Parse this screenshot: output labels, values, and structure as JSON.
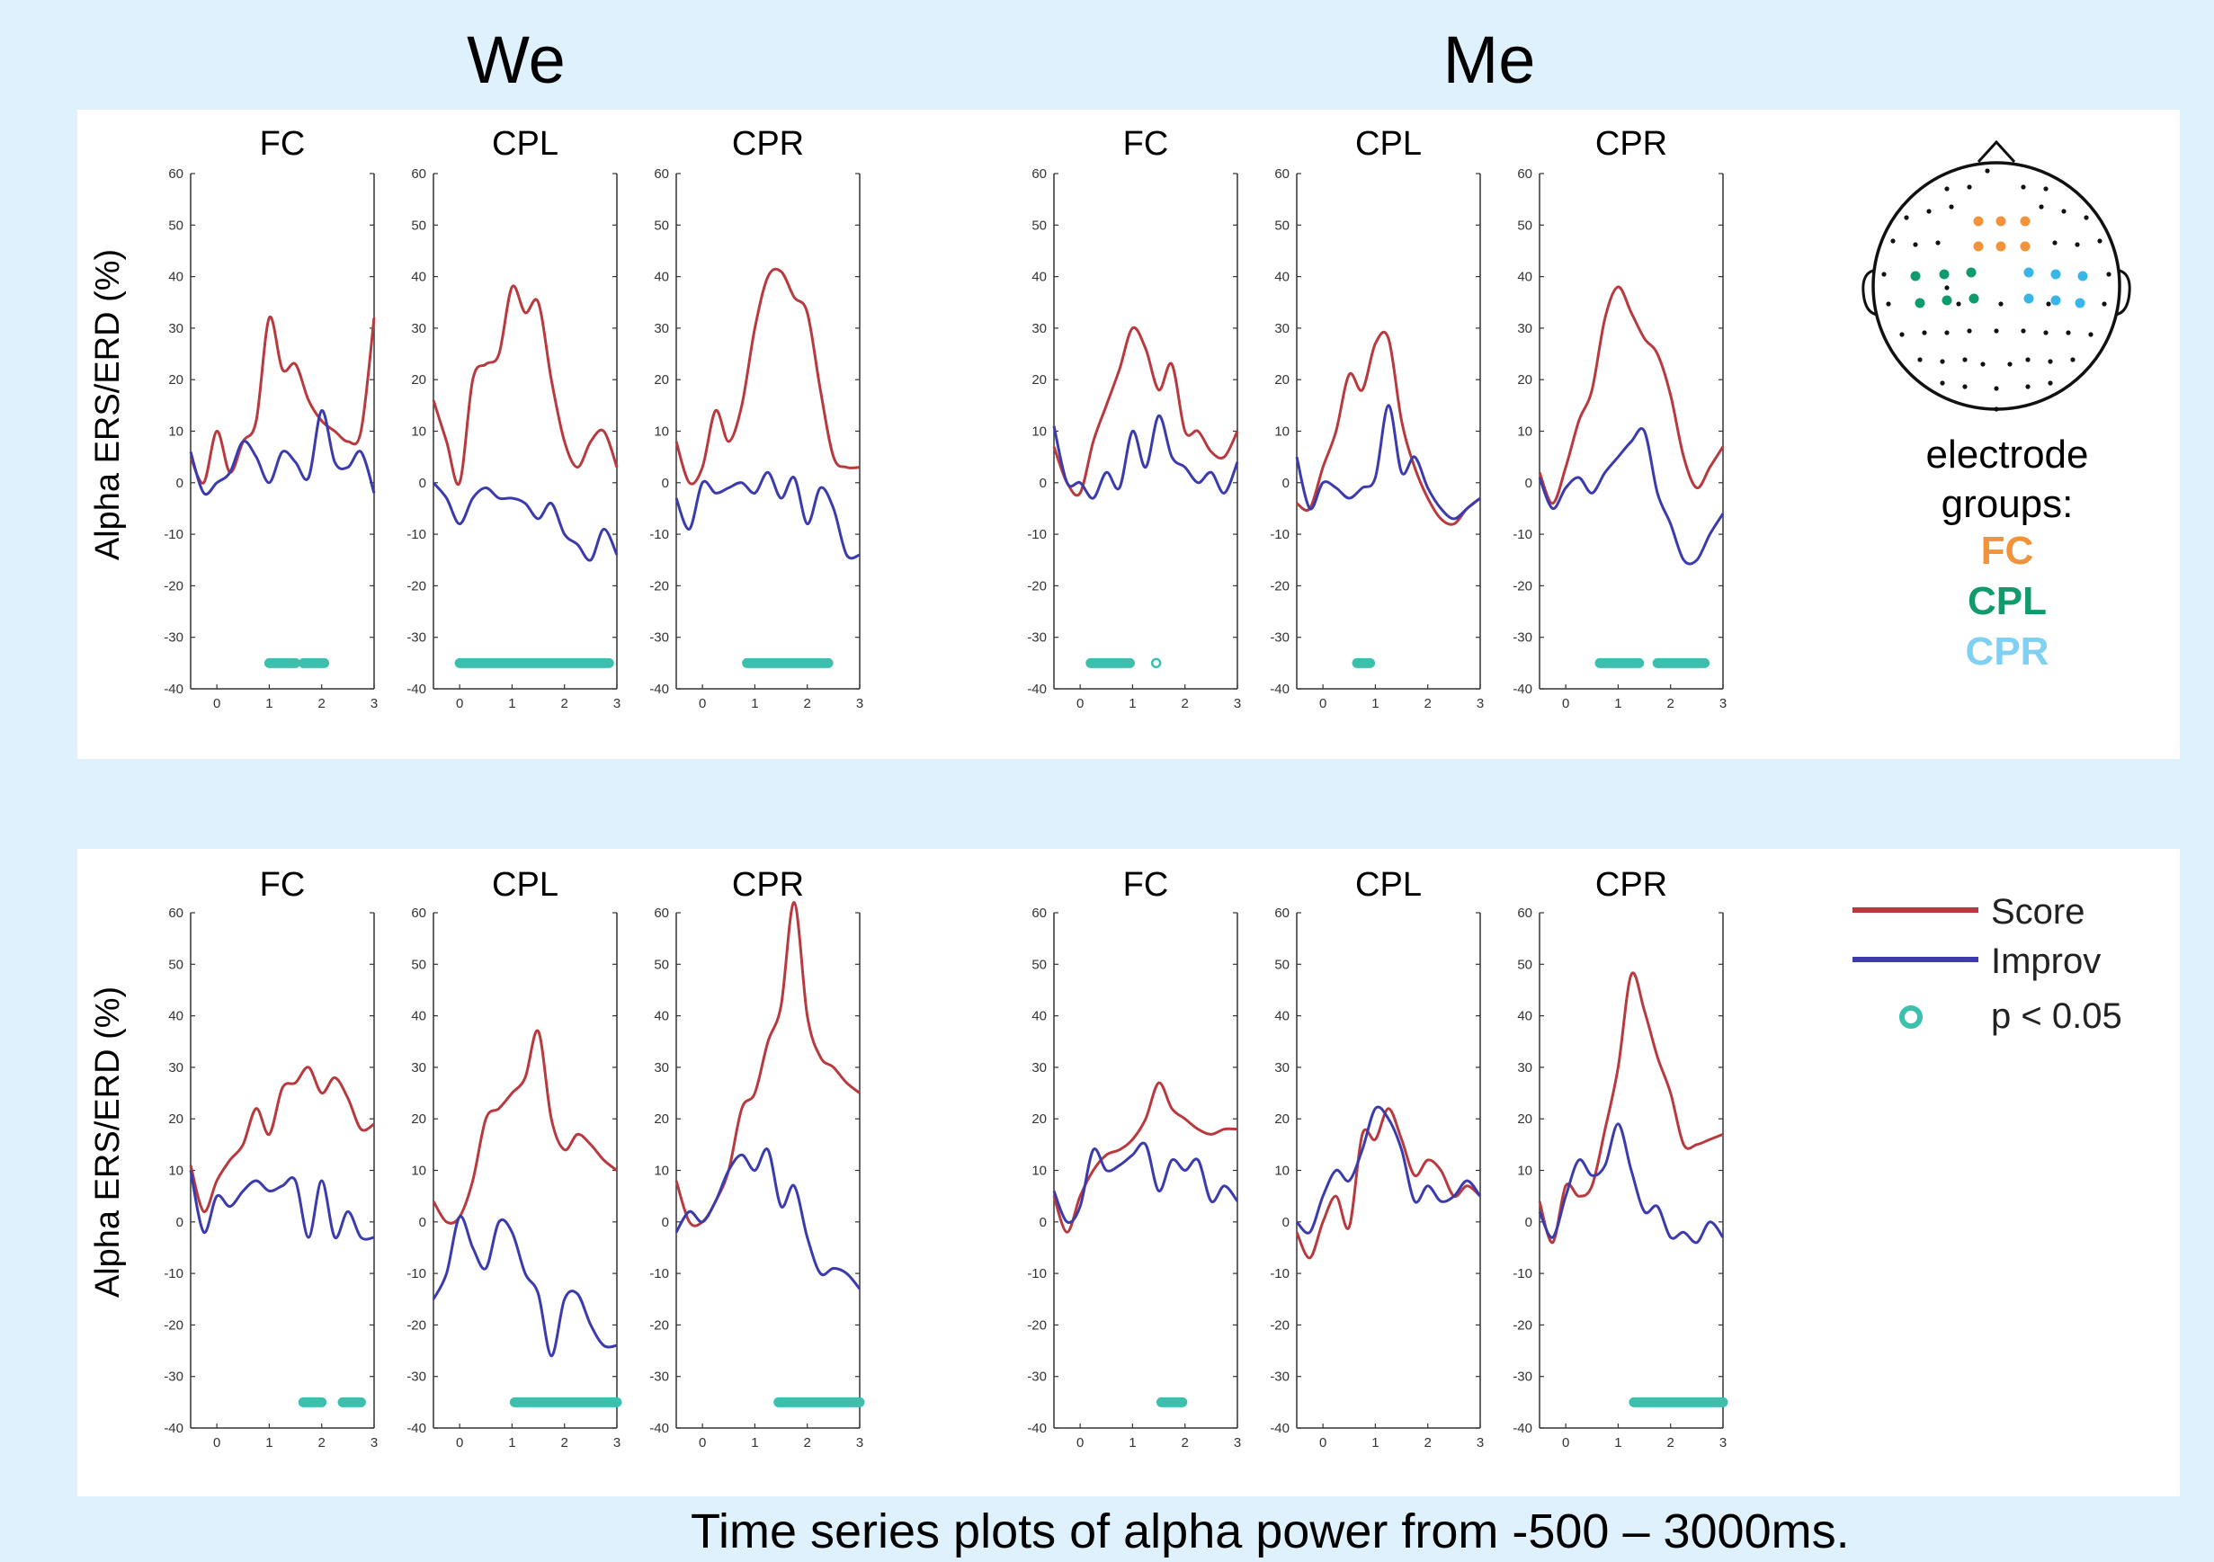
{
  "headers": {
    "we": "We",
    "me": "Me"
  },
  "caption": "Time series plots of alpha power from -500 – 3000ms.",
  "colors": {
    "background": "#dff1fc",
    "score": "#b83a3f",
    "improv": "#3b3bae",
    "significance": "#3dbfad",
    "fc": "#f2923a",
    "cpl": "#109b6c",
    "cpr": "#38b6e8"
  },
  "electrode_groups": {
    "title_line1": "electrode",
    "title_line2": "groups:",
    "items": [
      {
        "label": "FC",
        "color": "#f2923a"
      },
      {
        "label": "CPL",
        "color": "#109b6c"
      },
      {
        "label": "CPR",
        "color": "#7fd0f2"
      }
    ]
  },
  "legend": {
    "score": "Score",
    "improv": "Improv",
    "sig": "p < 0.05"
  },
  "chart_data": [
    {
      "type": "line",
      "row": 1,
      "group": "We",
      "title": "FC",
      "ylabel": "Alpha ERS/ERD (%)",
      "xlim": [
        -0.5,
        3
      ],
      "ylim": [
        -40,
        60
      ],
      "xticks": [
        0,
        1,
        2,
        3
      ],
      "yticks": [
        -40,
        -30,
        -20,
        -10,
        0,
        10,
        20,
        30,
        40,
        50,
        60
      ],
      "x": [
        -0.5,
        -0.25,
        0,
        0.25,
        0.5,
        0.75,
        1,
        1.25,
        1.5,
        1.75,
        2,
        2.25,
        2.5,
        2.75,
        3
      ],
      "series": [
        {
          "name": "Score",
          "values": [
            5,
            0,
            10,
            2,
            8,
            12,
            32,
            22,
            23,
            16,
            12,
            10,
            8,
            10,
            32
          ]
        },
        {
          "name": "Improv",
          "values": [
            6,
            -2,
            0,
            2,
            8,
            5,
            0,
            6,
            4,
            1,
            14,
            4,
            3,
            6,
            -2
          ]
        }
      ],
      "significance": [
        [
          1.0,
          1.5
        ],
        [
          1.65,
          2.05
        ]
      ]
    },
    {
      "type": "line",
      "row": 1,
      "group": "We",
      "title": "CPL",
      "xlim": [
        -0.5,
        3
      ],
      "ylim": [
        -40,
        60
      ],
      "xticks": [
        0,
        1,
        2,
        3
      ],
      "yticks": [
        -40,
        -30,
        -20,
        -10,
        0,
        10,
        20,
        30,
        40,
        50,
        60
      ],
      "x": [
        -0.5,
        -0.25,
        0,
        0.25,
        0.5,
        0.75,
        1,
        1.25,
        1.5,
        1.75,
        2,
        2.25,
        2.5,
        2.75,
        3
      ],
      "series": [
        {
          "name": "Score",
          "values": [
            16,
            8,
            0,
            20,
            23,
            25,
            38,
            33,
            35,
            20,
            8,
            3,
            8,
            10,
            3
          ]
        },
        {
          "name": "Improv",
          "values": [
            0,
            -3,
            -8,
            -3,
            -1,
            -3,
            -3,
            -4,
            -7,
            -4,
            -10,
            -12,
            -15,
            -9,
            -14
          ]
        }
      ],
      "significance": [
        [
          0.0,
          2.85
        ]
      ]
    },
    {
      "type": "line",
      "row": 1,
      "group": "We",
      "title": "CPR",
      "xlim": [
        -0.5,
        3
      ],
      "ylim": [
        -40,
        60
      ],
      "xticks": [
        0,
        1,
        2,
        3
      ],
      "yticks": [
        -40,
        -30,
        -20,
        -10,
        0,
        10,
        20,
        30,
        40,
        50,
        60
      ],
      "x": [
        -0.5,
        -0.25,
        0,
        0.25,
        0.5,
        0.75,
        1,
        1.25,
        1.5,
        1.75,
        2,
        2.25,
        2.5,
        2.75,
        3
      ],
      "series": [
        {
          "name": "Score",
          "values": [
            8,
            0,
            3,
            14,
            8,
            15,
            30,
            40,
            41,
            36,
            33,
            18,
            5,
            3,
            3
          ]
        },
        {
          "name": "Improv",
          "values": [
            -3,
            -9,
            0,
            -2,
            -1,
            0,
            -2,
            2,
            -3,
            1,
            -8,
            -1,
            -5,
            -14,
            -14
          ]
        }
      ],
      "significance": [
        [
          0.85,
          2.4
        ]
      ]
    },
    {
      "type": "line",
      "row": 1,
      "group": "Me",
      "title": "FC",
      "xlim": [
        -0.5,
        3
      ],
      "ylim": [
        -40,
        60
      ],
      "xticks": [
        0,
        1,
        2,
        3
      ],
      "yticks": [
        -40,
        -30,
        -20,
        -10,
        0,
        10,
        20,
        30,
        40,
        50,
        60
      ],
      "x": [
        -0.5,
        -0.25,
        0,
        0.25,
        0.5,
        0.75,
        1,
        1.25,
        1.5,
        1.75,
        2,
        2.25,
        2.5,
        2.75,
        3
      ],
      "series": [
        {
          "name": "Score",
          "values": [
            7,
            0,
            -2,
            8,
            15,
            22,
            30,
            26,
            18,
            23,
            10,
            10,
            6,
            5,
            10
          ]
        },
        {
          "name": "Improv",
          "values": [
            11,
            0,
            0,
            -3,
            2,
            -1,
            10,
            3,
            13,
            5,
            3,
            0,
            2,
            -2,
            4
          ]
        }
      ],
      "significance": [
        [
          0.2,
          0.95
        ]
      ],
      "significance_points": [
        1.45
      ]
    },
    {
      "type": "line",
      "row": 1,
      "group": "Me",
      "title": "CPL",
      "xlim": [
        -0.5,
        3
      ],
      "ylim": [
        -40,
        60
      ],
      "xticks": [
        0,
        1,
        2,
        3
      ],
      "yticks": [
        -40,
        -30,
        -20,
        -10,
        0,
        10,
        20,
        30,
        40,
        50,
        60
      ],
      "x": [
        -0.5,
        -0.25,
        0,
        0.25,
        0.5,
        0.75,
        1,
        1.25,
        1.5,
        1.75,
        2,
        2.25,
        2.5,
        2.75,
        3
      ],
      "series": [
        {
          "name": "Score",
          "values": [
            -4,
            -5,
            3,
            10,
            21,
            18,
            27,
            28,
            12,
            3,
            -3,
            -7,
            -8,
            -5,
            -3
          ]
        },
        {
          "name": "Improv",
          "values": [
            5,
            -5,
            0,
            -1,
            -3,
            -1,
            1,
            15,
            2,
            5,
            -1,
            -5,
            -7,
            -5,
            -3
          ]
        }
      ],
      "significance": [
        [
          0.65,
          0.9
        ]
      ]
    },
    {
      "type": "line",
      "row": 1,
      "group": "Me",
      "title": "CPR",
      "xlim": [
        -0.5,
        3
      ],
      "ylim": [
        -40,
        60
      ],
      "xticks": [
        0,
        1,
        2,
        3
      ],
      "yticks": [
        -40,
        -30,
        -20,
        -10,
        0,
        10,
        20,
        30,
        40,
        50,
        60
      ],
      "x": [
        -0.5,
        -0.25,
        0,
        0.25,
        0.5,
        0.75,
        1,
        1.25,
        1.5,
        1.75,
        2,
        2.25,
        2.5,
        2.75,
        3
      ],
      "series": [
        {
          "name": "Score",
          "values": [
            2,
            -4,
            3,
            12,
            18,
            32,
            38,
            33,
            28,
            25,
            17,
            5,
            -1,
            3,
            7
          ]
        },
        {
          "name": "Improv",
          "values": [
            1,
            -5,
            -1,
            1,
            -2,
            2,
            5,
            8,
            10,
            -2,
            -8,
            -15,
            -15,
            -10,
            -6
          ]
        }
      ],
      "significance": [
        [
          0.65,
          1.4
        ],
        [
          1.75,
          2.65
        ]
      ]
    },
    {
      "type": "line",
      "row": 2,
      "group": "We",
      "title": "FC",
      "ylabel": "Alpha ERS/ERD (%)",
      "xlim": [
        -0.5,
        3
      ],
      "ylim": [
        -40,
        60
      ],
      "xticks": [
        0,
        1,
        2,
        3
      ],
      "yticks": [
        -40,
        -30,
        -20,
        -10,
        0,
        10,
        20,
        30,
        40,
        50,
        60
      ],
      "x": [
        -0.5,
        -0.25,
        0,
        0.25,
        0.5,
        0.75,
        1,
        1.25,
        1.5,
        1.75,
        2,
        2.25,
        2.5,
        2.75,
        3
      ],
      "series": [
        {
          "name": "Score",
          "values": [
            11,
            2,
            8,
            12,
            15,
            22,
            17,
            26,
            27,
            30,
            25,
            28,
            24,
            18,
            19
          ]
        },
        {
          "name": "Improv",
          "values": [
            10,
            -2,
            5,
            3,
            6,
            8,
            6,
            7,
            8,
            -3,
            8,
            -3,
            2,
            -3,
            -3
          ]
        }
      ],
      "significance": [
        [
          1.65,
          2.0
        ],
        [
          2.4,
          2.75
        ]
      ]
    },
    {
      "type": "line",
      "row": 2,
      "group": "We",
      "title": "CPL",
      "xlim": [
        -0.5,
        3
      ],
      "ylim": [
        -40,
        60
      ],
      "xticks": [
        0,
        1,
        2,
        3
      ],
      "yticks": [
        -40,
        -30,
        -20,
        -10,
        0,
        10,
        20,
        30,
        40,
        50,
        60
      ],
      "x": [
        -0.5,
        -0.25,
        0,
        0.25,
        0.5,
        0.75,
        1,
        1.25,
        1.5,
        1.75,
        2,
        2.25,
        2.5,
        2.75,
        3
      ],
      "series": [
        {
          "name": "Score",
          "values": [
            4,
            0,
            1,
            8,
            20,
            22,
            25,
            28,
            37,
            20,
            14,
            17,
            15,
            12,
            10
          ]
        },
        {
          "name": "Improv",
          "values": [
            -15,
            -10,
            1,
            -5,
            -9,
            0,
            -2,
            -10,
            -14,
            -26,
            -15,
            -14,
            -20,
            -24,
            -24
          ]
        }
      ],
      "significance": [
        [
          1.05,
          3.0
        ]
      ]
    },
    {
      "type": "line",
      "row": 2,
      "group": "We",
      "title": "CPR",
      "xlim": [
        -0.5,
        3
      ],
      "ylim": [
        -40,
        60
      ],
      "xticks": [
        0,
        1,
        2,
        3
      ],
      "yticks": [
        -40,
        -30,
        -20,
        -10,
        0,
        10,
        20,
        30,
        40,
        50,
        60
      ],
      "x": [
        -0.5,
        -0.25,
        0,
        0.25,
        0.5,
        0.75,
        1,
        1.25,
        1.5,
        1.75,
        2,
        2.25,
        2.5,
        2.75,
        3
      ],
      "series": [
        {
          "name": "Score",
          "values": [
            8,
            0,
            0,
            4,
            10,
            22,
            25,
            35,
            42,
            62,
            40,
            32,
            30,
            27,
            25
          ]
        },
        {
          "name": "Improv",
          "values": [
            -2,
            2,
            0,
            4,
            10,
            13,
            10,
            14,
            3,
            7,
            -3,
            -10,
            -9,
            -10,
            -13
          ]
        }
      ],
      "significance": [
        [
          1.45,
          3.0
        ]
      ]
    },
    {
      "type": "line",
      "row": 2,
      "group": "Me",
      "title": "FC",
      "xlim": [
        -0.5,
        3
      ],
      "ylim": [
        -40,
        60
      ],
      "xticks": [
        0,
        1,
        2,
        3
      ],
      "yticks": [
        -40,
        -30,
        -20,
        -10,
        0,
        10,
        20,
        30,
        40,
        50,
        60
      ],
      "x": [
        -0.5,
        -0.25,
        0,
        0.25,
        0.5,
        0.75,
        1,
        1.25,
        1.5,
        1.75,
        2,
        2.25,
        2.5,
        2.75,
        3
      ],
      "series": [
        {
          "name": "Score",
          "values": [
            5,
            -2,
            5,
            10,
            13,
            14,
            16,
            20,
            27,
            22,
            20,
            18,
            17,
            18,
            18
          ]
        },
        {
          "name": "Improv",
          "values": [
            6,
            0,
            3,
            14,
            10,
            11,
            13,
            15,
            6,
            12,
            10,
            12,
            4,
            7,
            4
          ]
        }
      ],
      "significance": [
        [
          1.55,
          1.95
        ]
      ]
    },
    {
      "type": "line",
      "row": 2,
      "group": "Me",
      "title": "CPL",
      "xlim": [
        -0.5,
        3
      ],
      "ylim": [
        -40,
        60
      ],
      "xticks": [
        0,
        1,
        2,
        3
      ],
      "yticks": [
        -40,
        -30,
        -20,
        -10,
        0,
        10,
        20,
        30,
        40,
        50,
        60
      ],
      "x": [
        -0.5,
        -0.25,
        0,
        0.25,
        0.5,
        0.75,
        1,
        1.25,
        1.5,
        1.75,
        2,
        2.25,
        2.5,
        2.75,
        3
      ],
      "series": [
        {
          "name": "Score",
          "values": [
            -2,
            -7,
            0,
            5,
            -1,
            17,
            16,
            22,
            16,
            9,
            12,
            10,
            5,
            7,
            5
          ]
        },
        {
          "name": "Improv",
          "values": [
            0,
            -2,
            5,
            10,
            8,
            14,
            22,
            20,
            14,
            4,
            7,
            4,
            5,
            8,
            5
          ]
        }
      ],
      "significance": []
    },
    {
      "type": "line",
      "row": 2,
      "group": "Me",
      "title": "CPR",
      "xlim": [
        -0.5,
        3
      ],
      "ylim": [
        -40,
        60
      ],
      "xticks": [
        0,
        1,
        2,
        3
      ],
      "yticks": [
        -40,
        -30,
        -20,
        -10,
        0,
        10,
        20,
        30,
        40,
        50,
        60
      ],
      "x": [
        -0.5,
        -0.25,
        0,
        0.25,
        0.5,
        0.75,
        1,
        1.25,
        1.5,
        1.75,
        2,
        2.25,
        2.5,
        2.75,
        3
      ],
      "series": [
        {
          "name": "Score",
          "values": [
            4,
            -4,
            7,
            5,
            7,
            18,
            30,
            48,
            41,
            32,
            25,
            15,
            15,
            16,
            17
          ]
        },
        {
          "name": "Improv",
          "values": [
            2,
            -3,
            5,
            12,
            9,
            11,
            19,
            10,
            2,
            3,
            -3,
            -2,
            -4,
            0,
            -3
          ]
        }
      ],
      "significance": [
        [
          1.3,
          3.0
        ]
      ]
    }
  ]
}
